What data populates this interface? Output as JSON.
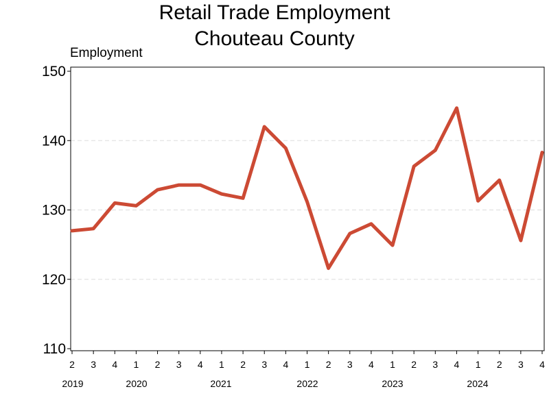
{
  "chart_data": {
    "type": "line",
    "title": "Retail Trade Employment",
    "subtitle": "Chouteau County",
    "ylabel": "Employment",
    "xlabel": "",
    "ylim": [
      110,
      150
    ],
    "yticks": [
      110,
      120,
      130,
      140,
      150
    ],
    "grid": true,
    "legend": "none",
    "line_color": "#cc4a34",
    "x": [
      "2019 Q2",
      "2019 Q3",
      "2019 Q4",
      "2020 Q1",
      "2020 Q2",
      "2020 Q3",
      "2020 Q4",
      "2021 Q1",
      "2021 Q2",
      "2021 Q3",
      "2021 Q4",
      "2022 Q1",
      "2022 Q2",
      "2022 Q3",
      "2022 Q4",
      "2023 Q1",
      "2023 Q2",
      "2023 Q3",
      "2023 Q4",
      "2024 Q1",
      "2024 Q2",
      "2024 Q3",
      "2024 Q4"
    ],
    "quarter_labels": [
      "2",
      "3",
      "4",
      "1",
      "2",
      "3",
      "4",
      "1",
      "2",
      "3",
      "4",
      "1",
      "2",
      "3",
      "4",
      "1",
      "2",
      "3",
      "4",
      "1",
      "2",
      "3",
      "4"
    ],
    "year_labels": [
      "2019",
      "2020",
      "2021",
      "2022",
      "2023",
      "2024"
    ],
    "series": [
      {
        "values": [
          127.0,
          127.3,
          131.0,
          130.6,
          132.9,
          133.6,
          133.6,
          132.3,
          131.7,
          142.0,
          138.9,
          131.2,
          121.6,
          126.6,
          128.0,
          124.9,
          136.3,
          138.6,
          144.7,
          131.3,
          134.3,
          125.6,
          138.3
        ]
      }
    ]
  }
}
